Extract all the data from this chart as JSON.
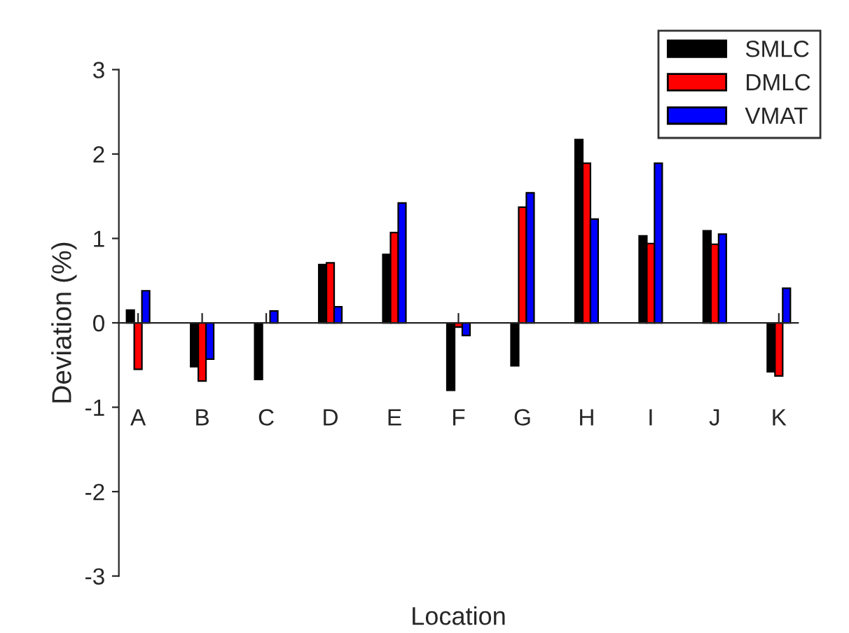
{
  "chart_data": {
    "type": "bar",
    "xlabel": "Location",
    "ylabel": "Deviation (%)",
    "categories": [
      "A",
      "B",
      "C",
      "D",
      "E",
      "F",
      "G",
      "H",
      "I",
      "J",
      "K"
    ],
    "series": [
      {
        "name": "SMLC",
        "color": "#000000",
        "values": [
          0.15,
          -0.52,
          -0.67,
          0.69,
          0.81,
          -0.8,
          -0.51,
          2.17,
          1.03,
          1.09,
          -0.58
        ]
      },
      {
        "name": "DMLC",
        "color": "#ff0000",
        "values": [
          -0.55,
          -0.69,
          null,
          0.71,
          1.07,
          -0.05,
          1.37,
          1.89,
          0.94,
          0.93,
          -0.63
        ]
      },
      {
        "name": "VMAT",
        "color": "#0000ff",
        "values": [
          0.38,
          -0.43,
          0.14,
          0.19,
          1.42,
          -0.15,
          1.54,
          1.23,
          1.89,
          1.05,
          0.41
        ]
      }
    ],
    "ylim": [
      -3,
      3
    ],
    "yticks": [
      -3,
      -2,
      -1,
      0,
      1,
      2,
      3
    ],
    "legend": "top right"
  }
}
